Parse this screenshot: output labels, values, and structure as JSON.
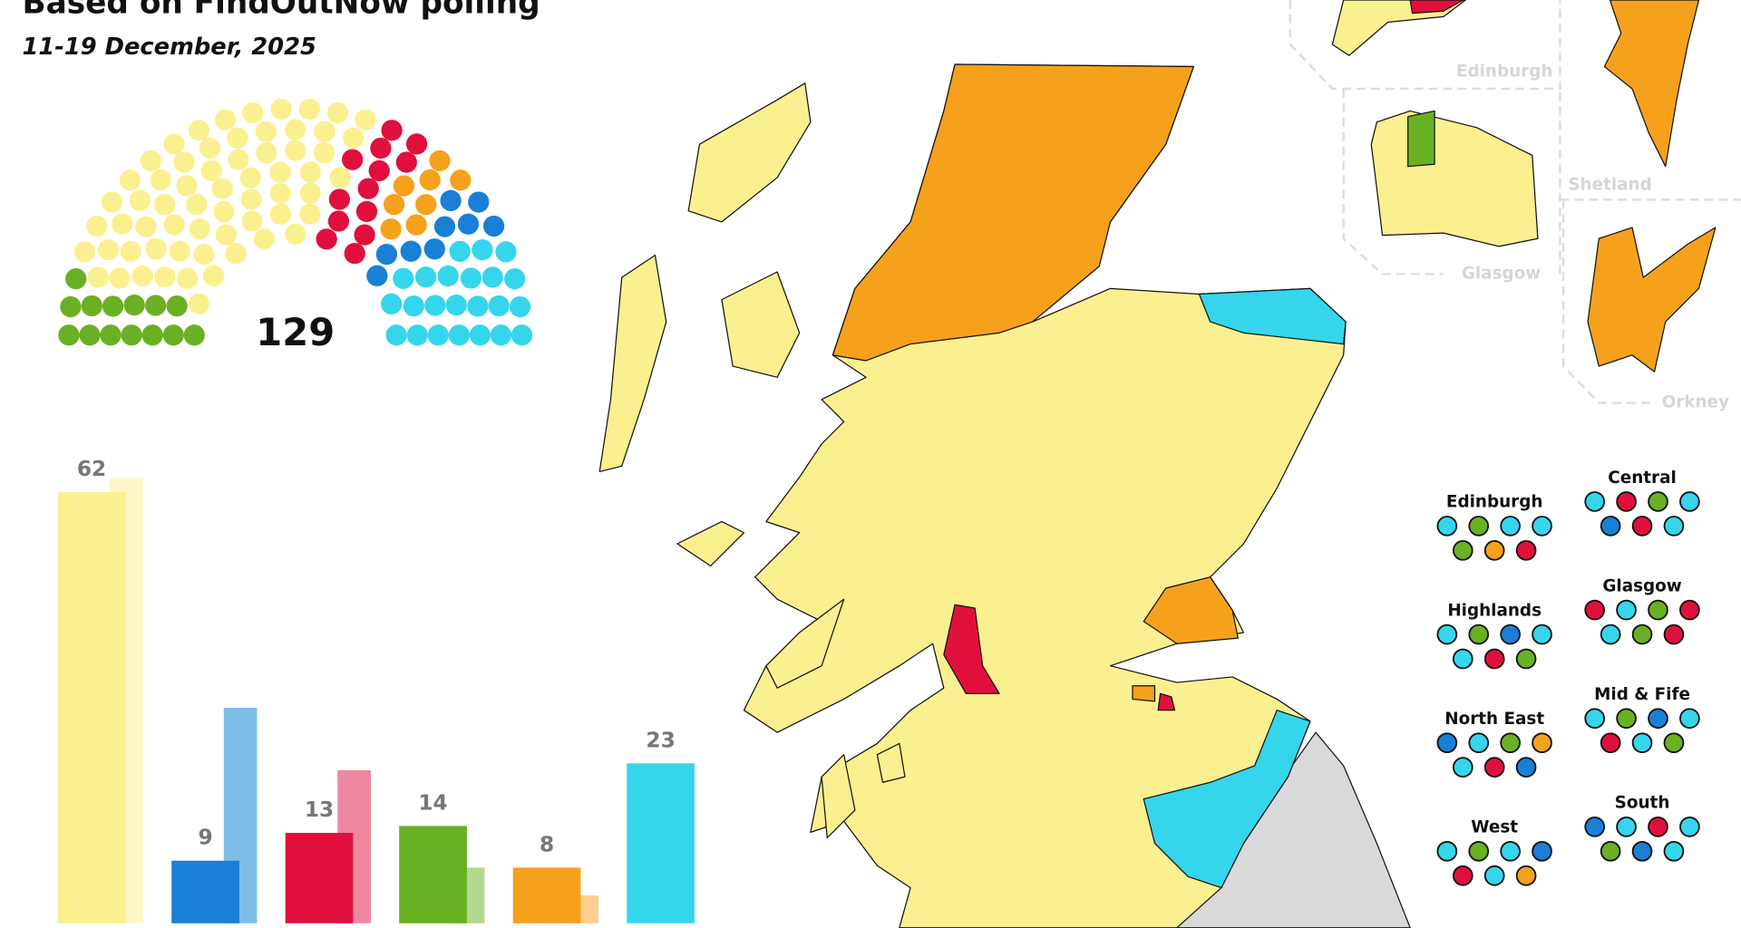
{
  "header": {
    "title": "Based on FindOutNow polling",
    "subtitle": "11-19 December, 2025"
  },
  "chart_data": [
    {
      "type": "parliament",
      "total": 129,
      "values": [
        14,
        62,
        13,
        8,
        9,
        23
      ],
      "colors": [
        "#6ab023",
        "#fbf08f",
        "#e0103c",
        "#f6a11c",
        "#1a7fd6",
        "#35d6ec"
      ]
    },
    {
      "type": "bar",
      "ylim": [
        0,
        64
      ],
      "series": [
        {
          "colors": [
            "#fbf08f",
            "#1a7fd6",
            "#e0103c",
            "#6ab023",
            "#f6a11c",
            "#35d6ec"
          ],
          "values": [
            62,
            9,
            13,
            14,
            8,
            23
          ]
        },
        {
          "colors": [
            "#fdf6c6",
            "#7fbde9",
            "#ef87a0",
            "#b5d891",
            "#fbcf8e",
            "#9ae8f4"
          ],
          "values": [
            64,
            31,
            22,
            8,
            4,
            0
          ]
        }
      ]
    }
  ],
  "map": {
    "insets": [
      "Edinburgh",
      "Glasgow",
      "Shetland",
      "Orkney"
    ]
  },
  "regions": [
    {
      "name": "Edinburgh",
      "seats": [
        "#35d6ec",
        "#6ab023",
        "#35d6ec",
        "#35d6ec",
        "#6ab023",
        "#f6a11c",
        "#e0103c"
      ]
    },
    {
      "name": "Central",
      "seats": [
        "#35d6ec",
        "#e0103c",
        "#6ab023",
        "#35d6ec",
        "#1a7fd6",
        "#e0103c",
        "#35d6ec"
      ]
    },
    {
      "name": "Highlands",
      "seats": [
        "#35d6ec",
        "#6ab023",
        "#1a7fd6",
        "#35d6ec",
        "#35d6ec",
        "#e0103c",
        "#6ab023"
      ]
    },
    {
      "name": "Glasgow",
      "seats": [
        "#e0103c",
        "#35d6ec",
        "#6ab023",
        "#e0103c",
        "#35d6ec",
        "#6ab023",
        "#e0103c"
      ]
    },
    {
      "name": "North East",
      "seats": [
        "#1a7fd6",
        "#35d6ec",
        "#6ab023",
        "#f6a11c",
        "#35d6ec",
        "#e0103c",
        "#1a7fd6"
      ]
    },
    {
      "name": "Mid & Fife",
      "seats": [
        "#35d6ec",
        "#6ab023",
        "#1a7fd6",
        "#35d6ec",
        "#e0103c",
        "#35d6ec",
        "#6ab023"
      ]
    },
    {
      "name": "West",
      "seats": [
        "#35d6ec",
        "#6ab023",
        "#35d6ec",
        "#1a7fd6",
        "#e0103c",
        "#35d6ec",
        "#f6a11c"
      ]
    },
    {
      "name": "South",
      "seats": [
        "#1a7fd6",
        "#35d6ec",
        "#e0103c",
        "#35d6ec",
        "#6ab023",
        "#1a7fd6",
        "#35d6ec"
      ]
    }
  ]
}
